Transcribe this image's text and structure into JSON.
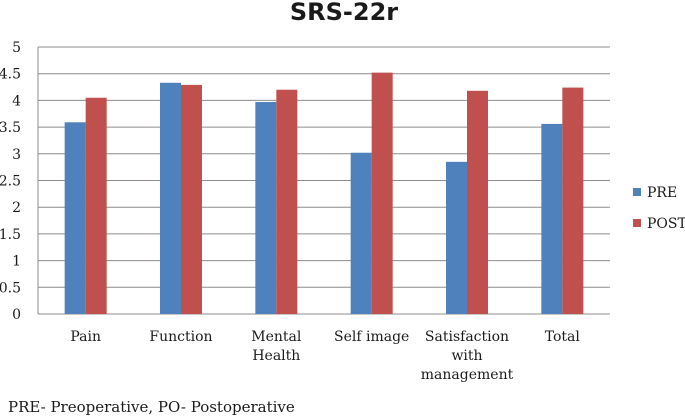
{
  "chart_data": {
    "type": "bar",
    "title": "SRS-22r",
    "categories": [
      "Pain",
      "Function",
      "Mental Health",
      "Self image",
      "Satisfaction with management",
      "Total"
    ],
    "category_lines": [
      [
        "Pain"
      ],
      [
        "Function"
      ],
      [
        "Mental",
        "Health"
      ],
      [
        "Self image"
      ],
      [
        "Satisfaction",
        "with",
        "management"
      ],
      [
        "Total"
      ]
    ],
    "series": [
      {
        "name": "PRE",
        "color": "#4F81BD",
        "values": [
          3.59,
          4.33,
          3.97,
          3.02,
          2.85,
          3.56
        ]
      },
      {
        "name": "POST",
        "color": "#C0504D",
        "values": [
          4.05,
          4.29,
          4.2,
          4.52,
          4.18,
          4.24
        ]
      }
    ],
    "ylim": [
      0,
      5
    ],
    "yticks": [
      "0",
      "0.5",
      "1",
      "1.5",
      "2",
      "2.5",
      "3",
      "3.5",
      "4",
      "4.5",
      "5"
    ],
    "grid": true,
    "legend_position": "right"
  },
  "footnote": "PRE- Preoperative, PO- Postoperative"
}
